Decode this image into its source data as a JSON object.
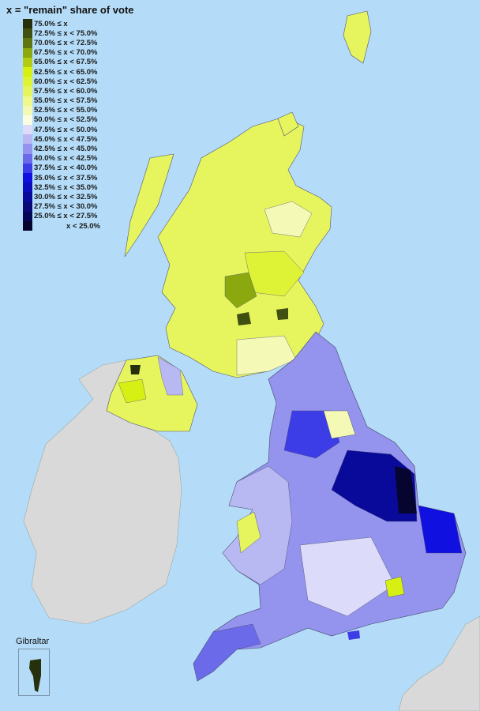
{
  "legend": {
    "title": "x = \"remain\" share of vote",
    "items": [
      {
        "label": "75.0% ≤ x",
        "color": "#26300c"
      },
      {
        "label": "72.5% ≤ x < 75.0%",
        "color": "#3f5010"
      },
      {
        "label": "70.0% ≤ x < 72.5%",
        "color": "#5f7512"
      },
      {
        "label": "67.5% ≤ x < 70.0%",
        "color": "#8ca80f"
      },
      {
        "label": "65.0% ≤ x < 67.5%",
        "color": "#b2cc12"
      },
      {
        "label": "62.5% ≤ x < 65.0%",
        "color": "#d5f012"
      },
      {
        "label": "60.0% ≤ x < 62.5%",
        "color": "#def236"
      },
      {
        "label": "57.5% ≤ x < 60.0%",
        "color": "#e6f55e"
      },
      {
        "label": "55.0% ≤ x < 57.5%",
        "color": "#eef88c"
      },
      {
        "label": "52.5% ≤ x < 55.0%",
        "color": "#f4fab6"
      },
      {
        "label": "50.0% ≤ x < 52.5%",
        "color": "#fafde2"
      },
      {
        "label": "47.5% ≤ x < 50.0%",
        "color": "#dcdcfa"
      },
      {
        "label": "45.0% ≤ x < 47.5%",
        "color": "#b8b8f2"
      },
      {
        "label": "42.5% ≤ x < 45.0%",
        "color": "#9494ee"
      },
      {
        "label": "40.0% ≤ x < 42.5%",
        "color": "#6b6bea"
      },
      {
        "label": "37.5% ≤ x < 40.0%",
        "color": "#3d3de8"
      },
      {
        "label": "35.0% ≤ x < 37.5%",
        "color": "#1010e0"
      },
      {
        "label": "32.5% ≤ x < 35.0%",
        "color": "#0c0cbc"
      },
      {
        "label": "30.0% ≤ x < 32.5%",
        "color": "#0a0a9a"
      },
      {
        "label": "27.5% ≤ x < 30.0%",
        "color": "#080878"
      },
      {
        "label": "25.0% ≤ x < 27.5%",
        "color": "#060656"
      },
      {
        "label": "x < 25.0%",
        "color": "#050530"
      }
    ]
  },
  "inset": {
    "label": "Gibraltar"
  },
  "colors": {
    "sea": "#b4dcf8",
    "other_land": "#d9d9d9"
  }
}
